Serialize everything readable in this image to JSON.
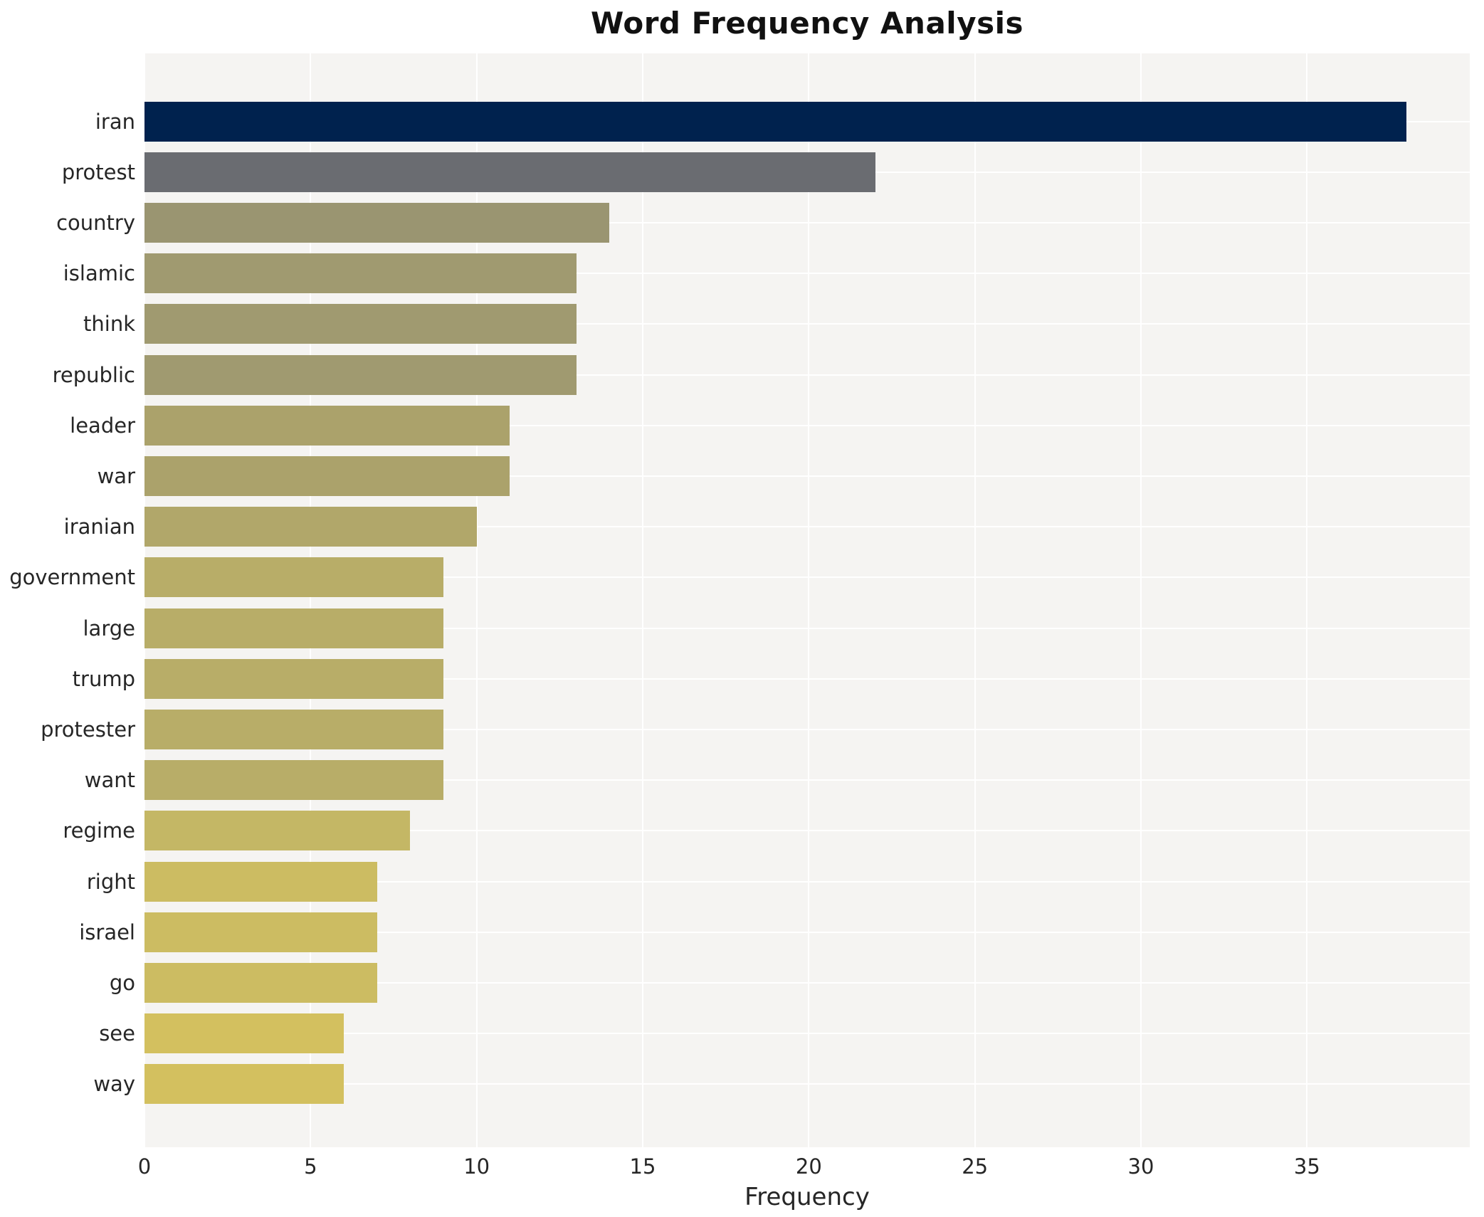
{
  "title": "Word Frequency Analysis",
  "chart_data": {
    "type": "bar",
    "orientation": "horizontal",
    "title": "Word Frequency Analysis",
    "xlabel": "Frequency",
    "ylabel": "",
    "categories": [
      "iran",
      "protest",
      "country",
      "islamic",
      "think",
      "republic",
      "leader",
      "war",
      "iranian",
      "government",
      "large",
      "trump",
      "protester",
      "want",
      "regime",
      "right",
      "israel",
      "go",
      "see",
      "way"
    ],
    "values": [
      38,
      22,
      14,
      13,
      13,
      13,
      11,
      11,
      10,
      9,
      9,
      9,
      9,
      9,
      8,
      7,
      7,
      7,
      6,
      6
    ],
    "bar_colors": [
      "#00224e",
      "#6a6c71",
      "#9a9571",
      "#a09a70",
      "#a09a70",
      "#a09a70",
      "#aba26b",
      "#aba26b",
      "#b1a76a",
      "#b8ad68",
      "#b8ad68",
      "#b8ad68",
      "#b8ad68",
      "#b8ad68",
      "#c4b765",
      "#ccbc62",
      "#ccbc62",
      "#ccbc62",
      "#d3c05f",
      "#d3c05f"
    ],
    "x_ticks": [
      0,
      5,
      10,
      15,
      20,
      25,
      30,
      35
    ],
    "xlim": [
      0,
      39.9
    ],
    "grid": true,
    "legend": "none",
    "colors": {
      "plot_background": "#f5f4f2",
      "figure_background": "#ffffff",
      "gridline": "#ffffff",
      "text": "#262626",
      "title_text": "#111111"
    }
  }
}
